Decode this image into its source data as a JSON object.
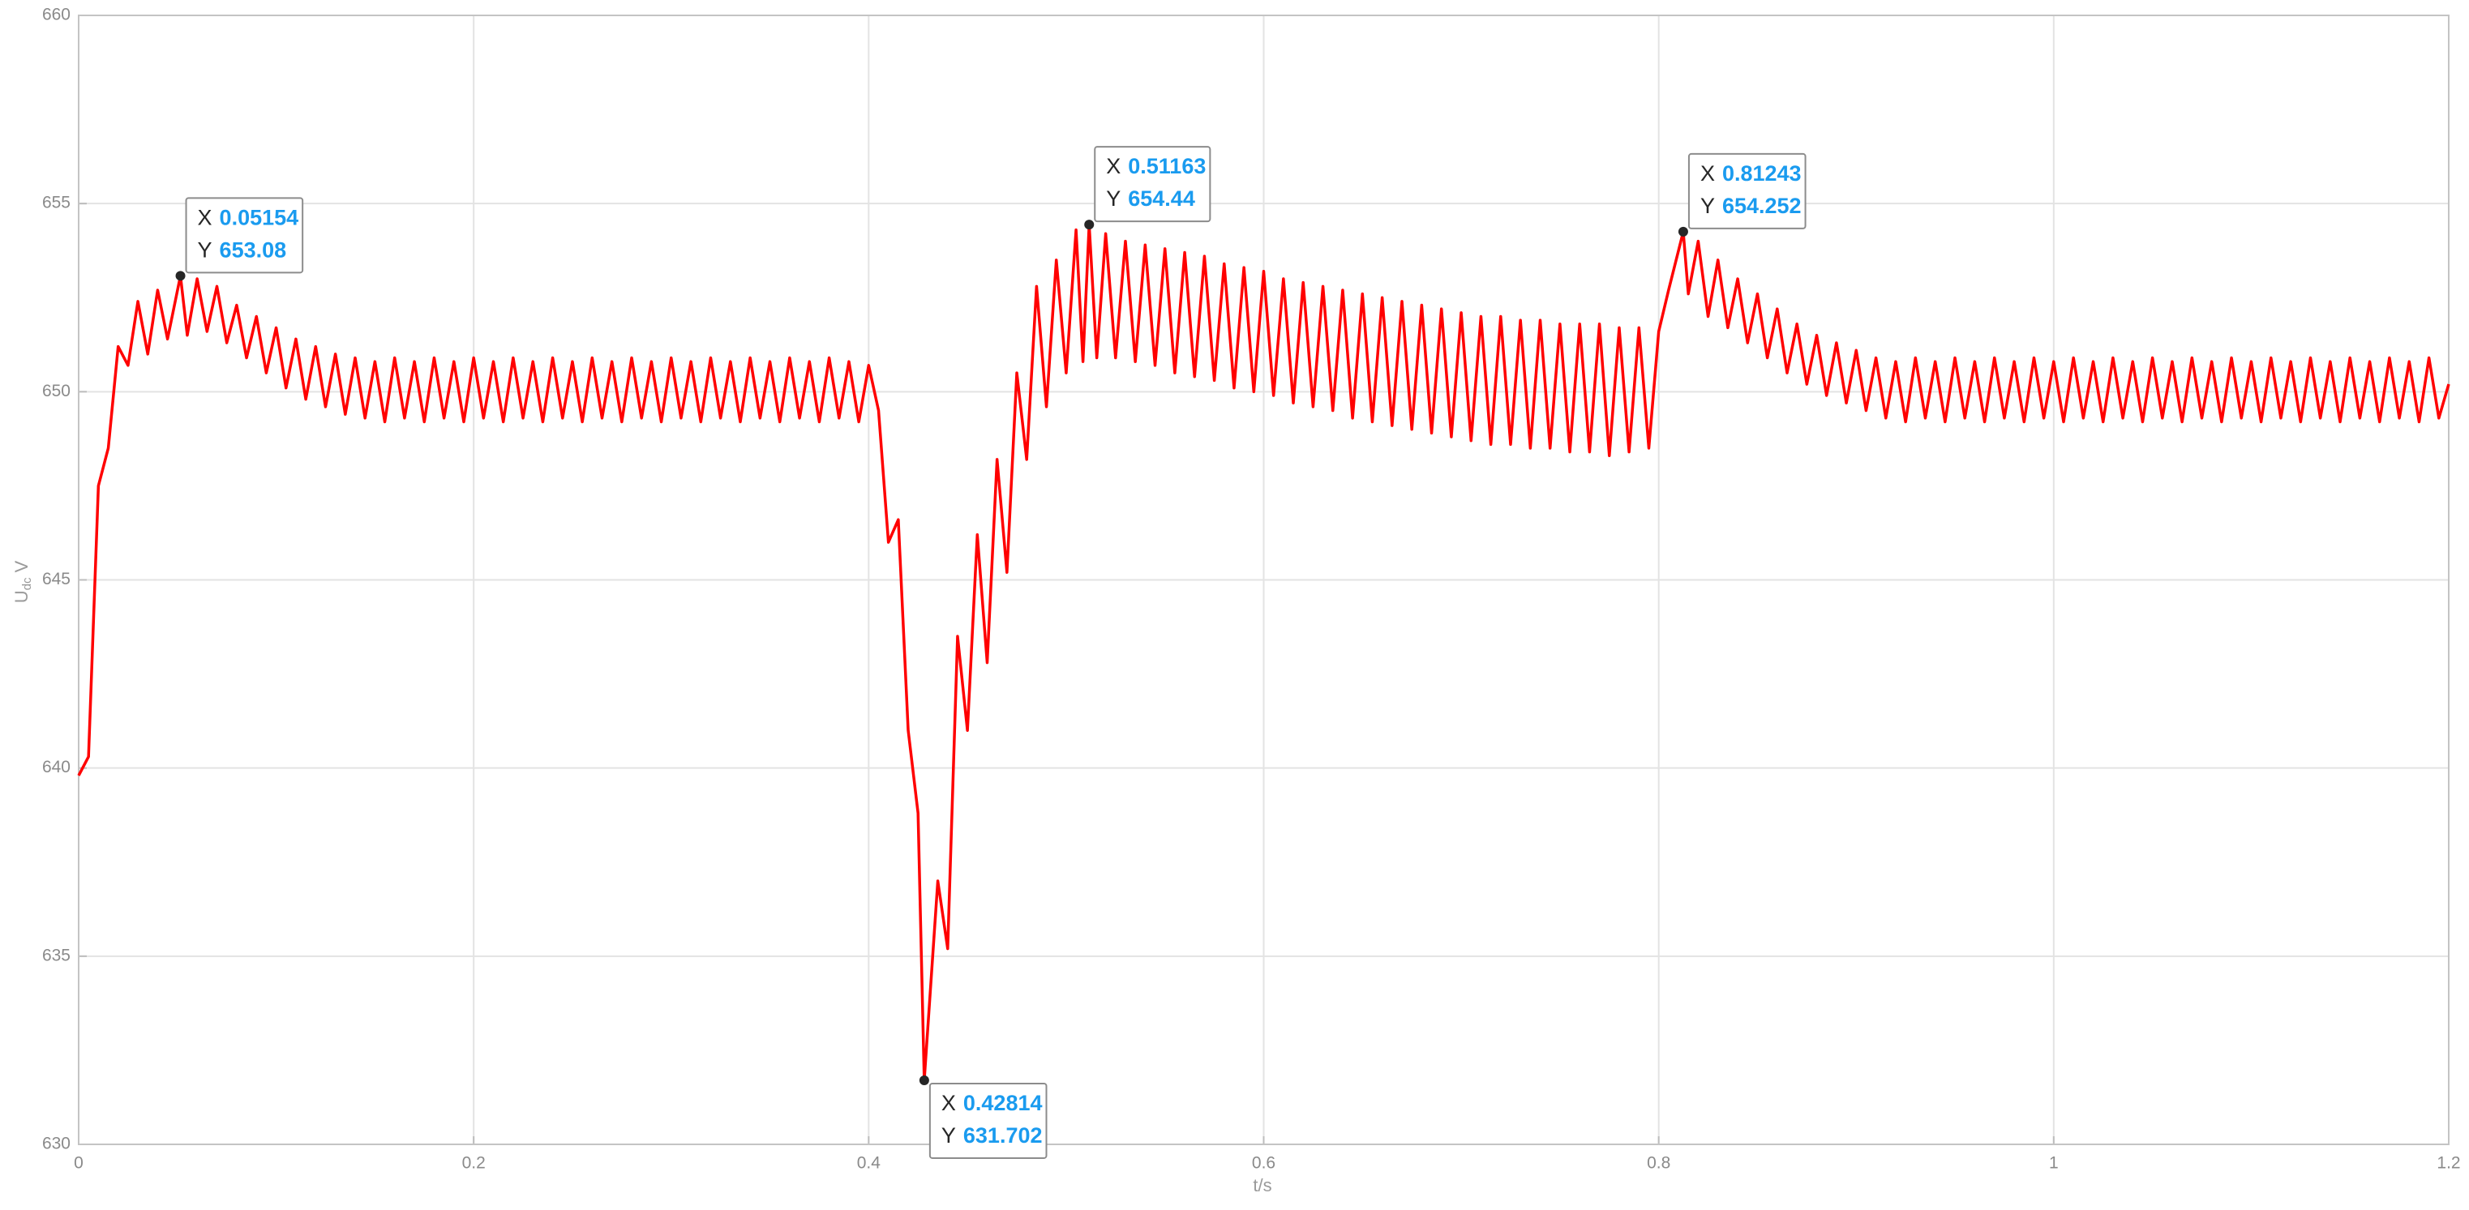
{
  "chart_data": {
    "type": "line",
    "xlabel": "t/s",
    "ylabel": {
      "text": "U",
      "subscript": "dc",
      "unit": "V"
    },
    "xlim": [
      0,
      1.2
    ],
    "xticks": [
      0,
      0.2,
      0.4,
      0.6,
      0.8,
      1,
      1.2
    ],
    "ylim": [
      630,
      660
    ],
    "yticks": [
      630,
      635,
      640,
      645,
      650,
      655,
      660
    ],
    "grid": true,
    "x": [
      0,
      0.005,
      0.01,
      0.015,
      0.02,
      0.025,
      0.03,
      0.035,
      0.04,
      0.045,
      0.05154,
      0.055,
      0.06,
      0.065,
      0.07,
      0.075,
      0.08,
      0.085,
      0.09,
      0.095,
      0.1,
      0.105,
      0.11,
      0.115,
      0.12,
      0.125,
      0.13,
      0.135,
      0.14,
      0.145,
      0.15,
      0.155,
      0.16,
      0.165,
      0.17,
      0.175,
      0.18,
      0.185,
      0.19,
      0.195,
      0.2,
      0.205,
      0.21,
      0.215,
      0.22,
      0.225,
      0.23,
      0.235,
      0.24,
      0.245,
      0.25,
      0.255,
      0.26,
      0.265,
      0.27,
      0.275,
      0.28,
      0.285,
      0.29,
      0.295,
      0.3,
      0.305,
      0.31,
      0.315,
      0.32,
      0.325,
      0.33,
      0.335,
      0.34,
      0.345,
      0.35,
      0.355,
      0.36,
      0.365,
      0.37,
      0.375,
      0.38,
      0.385,
      0.39,
      0.395,
      0.4,
      0.405,
      0.41,
      0.415,
      0.42,
      0.425,
      0.42814,
      0.435,
      0.44,
      0.445,
      0.45,
      0.455,
      0.46,
      0.465,
      0.47,
      0.475,
      0.48,
      0.485,
      0.49,
      0.495,
      0.5,
      0.505,
      0.5085,
      0.51163,
      0.5155,
      0.52,
      0.525,
      0.53,
      0.535,
      0.54,
      0.545,
      0.55,
      0.555,
      0.56,
      0.565,
      0.57,
      0.575,
      0.58,
      0.585,
      0.59,
      0.595,
      0.6,
      0.605,
      0.61,
      0.615,
      0.62,
      0.625,
      0.63,
      0.635,
      0.64,
      0.645,
      0.65,
      0.655,
      0.66,
      0.665,
      0.67,
      0.675,
      0.68,
      0.685,
      0.69,
      0.695,
      0.7,
      0.705,
      0.71,
      0.715,
      0.72,
      0.725,
      0.73,
      0.735,
      0.74,
      0.745,
      0.75,
      0.755,
      0.76,
      0.765,
      0.77,
      0.775,
      0.78,
      0.785,
      0.79,
      0.795,
      0.8,
      0.805,
      0.81243,
      0.815,
      0.82,
      0.825,
      0.83,
      0.835,
      0.84,
      0.845,
      0.85,
      0.855,
      0.86,
      0.865,
      0.87,
      0.875,
      0.88,
      0.885,
      0.89,
      0.895,
      0.9,
      0.905,
      0.91,
      0.915,
      0.92,
      0.925,
      0.93,
      0.935,
      0.94,
      0.945,
      0.95,
      0.955,
      0.96,
      0.965,
      0.97,
      0.975,
      0.98,
      0.985,
      0.99,
      0.995,
      1,
      1.005,
      1.01,
      1.015,
      1.02,
      1.025,
      1.03,
      1.035,
      1.04,
      1.045,
      1.05,
      1.055,
      1.06,
      1.065,
      1.07,
      1.075,
      1.08,
      1.085,
      1.09,
      1.095,
      1.1,
      1.105,
      1.11,
      1.115,
      1.12,
      1.125,
      1.13,
      1.135,
      1.14,
      1.145,
      1.15,
      1.155,
      1.16,
      1.165,
      1.17,
      1.175,
      1.18,
      1.185,
      1.19,
      1.195,
      1.2
    ],
    "series": [
      {
        "color": "#ff0000",
        "values": [
          639.8,
          640.3,
          647.5,
          648.5,
          651.2,
          650.7,
          652.4,
          651,
          652.7,
          651.4,
          653.08,
          651.5,
          653,
          651.6,
          652.8,
          651.3,
          652.3,
          650.9,
          652,
          650.5,
          651.7,
          650.1,
          651.4,
          649.8,
          651.2,
          649.6,
          651.0,
          649.4,
          650.9,
          649.3,
          650.8,
          649.2,
          650.9,
          649.3,
          650.8,
          649.2,
          650.9,
          649.3,
          650.8,
          649.2,
          650.9,
          649.3,
          650.8,
          649.2,
          650.9,
          649.3,
          650.8,
          649.2,
          650.9,
          649.3,
          650.8,
          649.2,
          650.9,
          649.3,
          650.8,
          649.2,
          650.9,
          649.3,
          650.8,
          649.2,
          650.9,
          649.3,
          650.8,
          649.2,
          650.9,
          649.3,
          650.8,
          649.2,
          650.9,
          649.3,
          650.8,
          649.2,
          650.9,
          649.3,
          650.8,
          649.2,
          650.9,
          649.3,
          650.8,
          649.2,
          650.7,
          649.5,
          646,
          646.6,
          641,
          638.8,
          631.702,
          637,
          635.2,
          643.5,
          641,
          646.2,
          642.8,
          648.2,
          645.2,
          650.5,
          648.2,
          652.8,
          649.6,
          653.5,
          650.5,
          654.3,
          650.8,
          654.44,
          650.9,
          654.2,
          650.9,
          654.0,
          650.8,
          653.9,
          650.7,
          653.8,
          650.5,
          653.7,
          650.4,
          653.6,
          650.3,
          653.4,
          650.1,
          653.3,
          650.0,
          653.2,
          649.9,
          653.0,
          649.7,
          652.9,
          649.6,
          652.8,
          649.5,
          652.7,
          649.3,
          652.6,
          649.2,
          652.5,
          649.1,
          652.4,
          649.0,
          652.3,
          648.9,
          652.2,
          648.8,
          652.1,
          648.7,
          652.0,
          648.6,
          652.0,
          648.6,
          651.9,
          648.5,
          651.9,
          648.5,
          651.8,
          648.4,
          651.8,
          648.4,
          651.8,
          648.3,
          651.7,
          648.4,
          651.7,
          648.5,
          651.6,
          652.7,
          654.252,
          652.6,
          654.0,
          652.0,
          653.5,
          651.7,
          653.0,
          651.3,
          652.6,
          650.9,
          652.2,
          650.5,
          651.8,
          650.2,
          651.5,
          649.9,
          651.3,
          649.7,
          651.1,
          649.5,
          650.9,
          649.3,
          650.8,
          649.2,
          650.9,
          649.3,
          650.8,
          649.2,
          650.9,
          649.3,
          650.8,
          649.2,
          650.9,
          649.3,
          650.8,
          649.2,
          650.9,
          649.3,
          650.8,
          649.2,
          650.9,
          649.3,
          650.8,
          649.2,
          650.9,
          649.3,
          650.8,
          649.2,
          650.9,
          649.3,
          650.8,
          649.2,
          650.9,
          649.3,
          650.8,
          649.2,
          650.9,
          649.3,
          650.8,
          649.2,
          650.9,
          649.3,
          650.8,
          649.2,
          650.9,
          649.3,
          650.8,
          649.2,
          650.9,
          649.3,
          650.8,
          649.2,
          650.9,
          649.3,
          650.8,
          649.2,
          650.9,
          649.3,
          650.2
        ]
      }
    ],
    "annotations": [
      {
        "x_label": "X",
        "x": 0.05154,
        "y_label": "Y",
        "y": 653.08
      },
      {
        "x_label": "X",
        "x": 0.42814,
        "y_label": "Y",
        "y": 631.702
      },
      {
        "x_label": "X",
        "x": 0.51163,
        "y_label": "Y",
        "y": 654.44
      },
      {
        "x_label": "X",
        "x": 0.81243,
        "y_label": "Y",
        "y": 654.252
      }
    ]
  }
}
